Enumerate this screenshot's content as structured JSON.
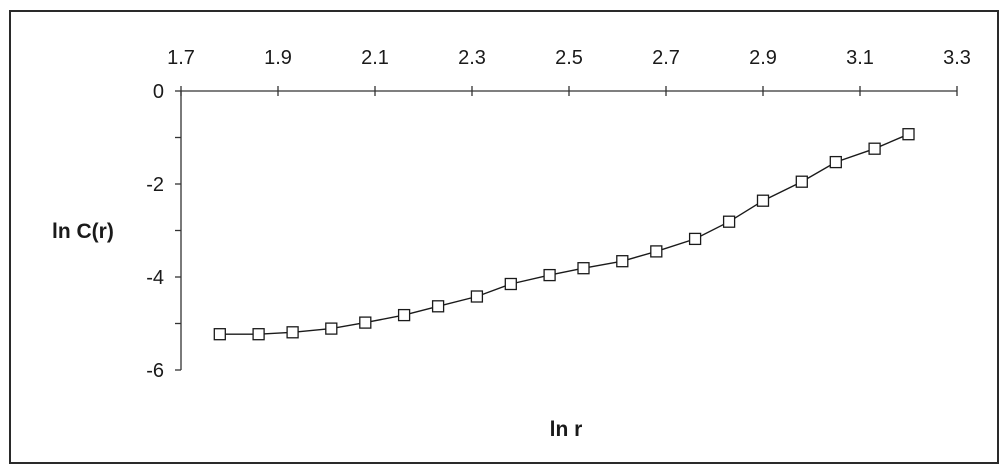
{
  "chart_data": {
    "type": "line",
    "title": "",
    "xlabel": "ln r",
    "ylabel": "ln C(r)",
    "xlim": [
      1.7,
      3.3
    ],
    "ylim": [
      -6,
      0
    ],
    "x_ticks": [
      1.7,
      1.9,
      2.1,
      2.3,
      2.5,
      2.7,
      2.9,
      3.1,
      3.3
    ],
    "x_tick_labels": [
      "1.7",
      "1.9",
      "2.1",
      "2.3",
      "2.5",
      "2.7",
      "2.9",
      "3.1",
      "3.3"
    ],
    "y_ticks": [
      0,
      -2,
      -4,
      -6
    ],
    "y_tick_labels": [
      "0",
      "-2",
      "-4",
      "-6"
    ],
    "x_axis_position": "top",
    "grid": false,
    "marker": "open-square",
    "line_color": "#1a1a1a",
    "series": [
      {
        "x": [
          1.78,
          1.86,
          1.93,
          2.01,
          2.08,
          2.16,
          2.23,
          2.31,
          2.38,
          2.46,
          2.53,
          2.61,
          2.68,
          2.76,
          2.83,
          2.9,
          2.98,
          3.05,
          3.13,
          3.2
        ],
        "y": [
          -5.23,
          -5.23,
          -5.19,
          -5.11,
          -4.98,
          -4.82,
          -4.63,
          -4.42,
          -4.15,
          -3.96,
          -3.81,
          -3.66,
          -3.45,
          -3.18,
          -2.81,
          -2.36,
          -1.95,
          -1.53,
          -1.24,
          -0.93
        ]
      }
    ]
  }
}
